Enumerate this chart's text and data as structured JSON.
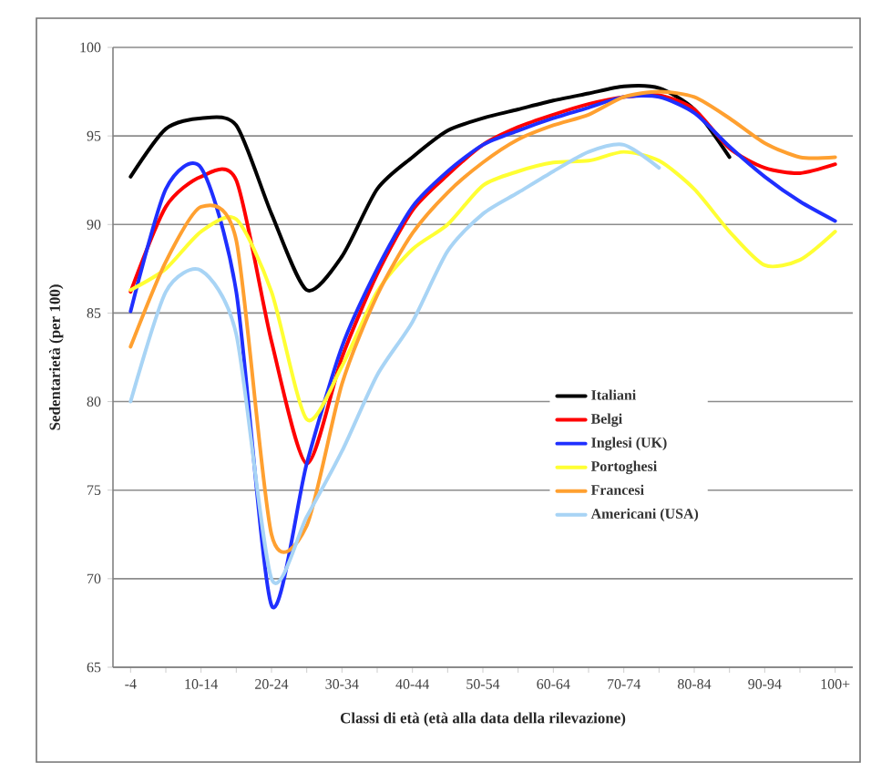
{
  "chart_data": {
    "type": "line",
    "xlabel": "Classi di età (età alla data della rilevazione)",
    "ylabel": "Sedentarietà (per 100)",
    "categories": [
      "-4",
      null,
      "10-14",
      null,
      "20-24",
      null,
      "30-34",
      null,
      "40-44",
      null,
      "50-54",
      null,
      "60-64",
      null,
      "70-74",
      null,
      "80-84",
      null,
      "90-94",
      null,
      "100+"
    ],
    "ylim": [
      65,
      100
    ],
    "yticks": [
      65,
      70,
      75,
      80,
      85,
      90,
      95,
      100
    ],
    "grid": "y",
    "legend": "right",
    "marker": "none",
    "line_style": "solid",
    "series": [
      {
        "name": "Italiani",
        "color": "#000000",
        "values": [
          92.7,
          95.4,
          96.0,
          95.6,
          90.6,
          86.3,
          88.2,
          92.0,
          93.8,
          95.3,
          96.0,
          96.5,
          97.0,
          97.4,
          97.8,
          97.7,
          96.5,
          93.8,
          null,
          null,
          null
        ]
      },
      {
        "name": "Belgi",
        "color": "#ff0000",
        "values": [
          86.2,
          91.0,
          92.7,
          92.5,
          83.4,
          76.5,
          82.5,
          87.2,
          90.8,
          92.8,
          94.5,
          95.5,
          96.2,
          96.8,
          97.2,
          97.3,
          96.5,
          94.3,
          93.2,
          92.9,
          93.4
        ]
      },
      {
        "name": "Inglesi (UK)",
        "color": "#1f2fff",
        "values": [
          85.1,
          92.0,
          93.2,
          86.2,
          68.5,
          76.5,
          83.1,
          87.5,
          91.0,
          93.0,
          94.5,
          95.3,
          96.0,
          96.6,
          97.2,
          97.2,
          96.3,
          94.4,
          92.7,
          91.3,
          90.2
        ]
      },
      {
        "name": "Portoghesi",
        "color": "#ffff33",
        "values": [
          86.3,
          87.5,
          89.6,
          90.3,
          86.2,
          79.0,
          82.0,
          86.2,
          88.6,
          90.0,
          92.2,
          93.0,
          93.5,
          93.6,
          94.1,
          93.6,
          92.0,
          89.6,
          87.7,
          88.0,
          89.6
        ]
      },
      {
        "name": "Francesi",
        "color": "#ffa030",
        "values": [
          83.1,
          87.9,
          91.0,
          89.1,
          72.5,
          73.0,
          81.0,
          86.0,
          89.5,
          91.8,
          93.5,
          94.8,
          95.6,
          96.2,
          97.2,
          97.5,
          97.2,
          96.0,
          94.6,
          93.8,
          93.8
        ]
      },
      {
        "name": "Americani (USA)",
        "color": "#a8d4f5",
        "values": [
          80.0,
          86.2,
          87.4,
          83.8,
          70.0,
          73.5,
          77.2,
          81.5,
          84.5,
          88.5,
          90.6,
          91.8,
          93.0,
          94.1,
          94.5,
          93.2,
          null,
          null,
          null,
          null,
          null
        ]
      }
    ]
  }
}
